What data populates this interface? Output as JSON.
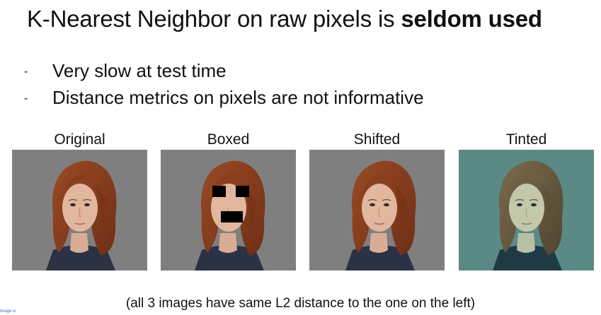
{
  "title": {
    "prefix": "K-Nearest Neighbor on raw pixels is",
    "emphasis": "seldom used"
  },
  "bullets": [
    {
      "marker": "-",
      "text": "Very slow at test time"
    },
    {
      "marker": "-",
      "text": "Distance metrics on pixels are not informative"
    }
  ],
  "images": [
    {
      "caption": "Original",
      "background": "#7f7f7f",
      "tint": "none"
    },
    {
      "caption": "Boxed",
      "background": "#7f7f7f",
      "tint": "none"
    },
    {
      "caption": "Shifted",
      "background": "#7f7f7f",
      "tint": "none"
    },
    {
      "caption": "Tinted",
      "background": "#5b8a86",
      "tint": "teal"
    }
  ],
  "footnote": "(all 3 images have same L2 distance to the one on the left)",
  "watermark": "image is"
}
